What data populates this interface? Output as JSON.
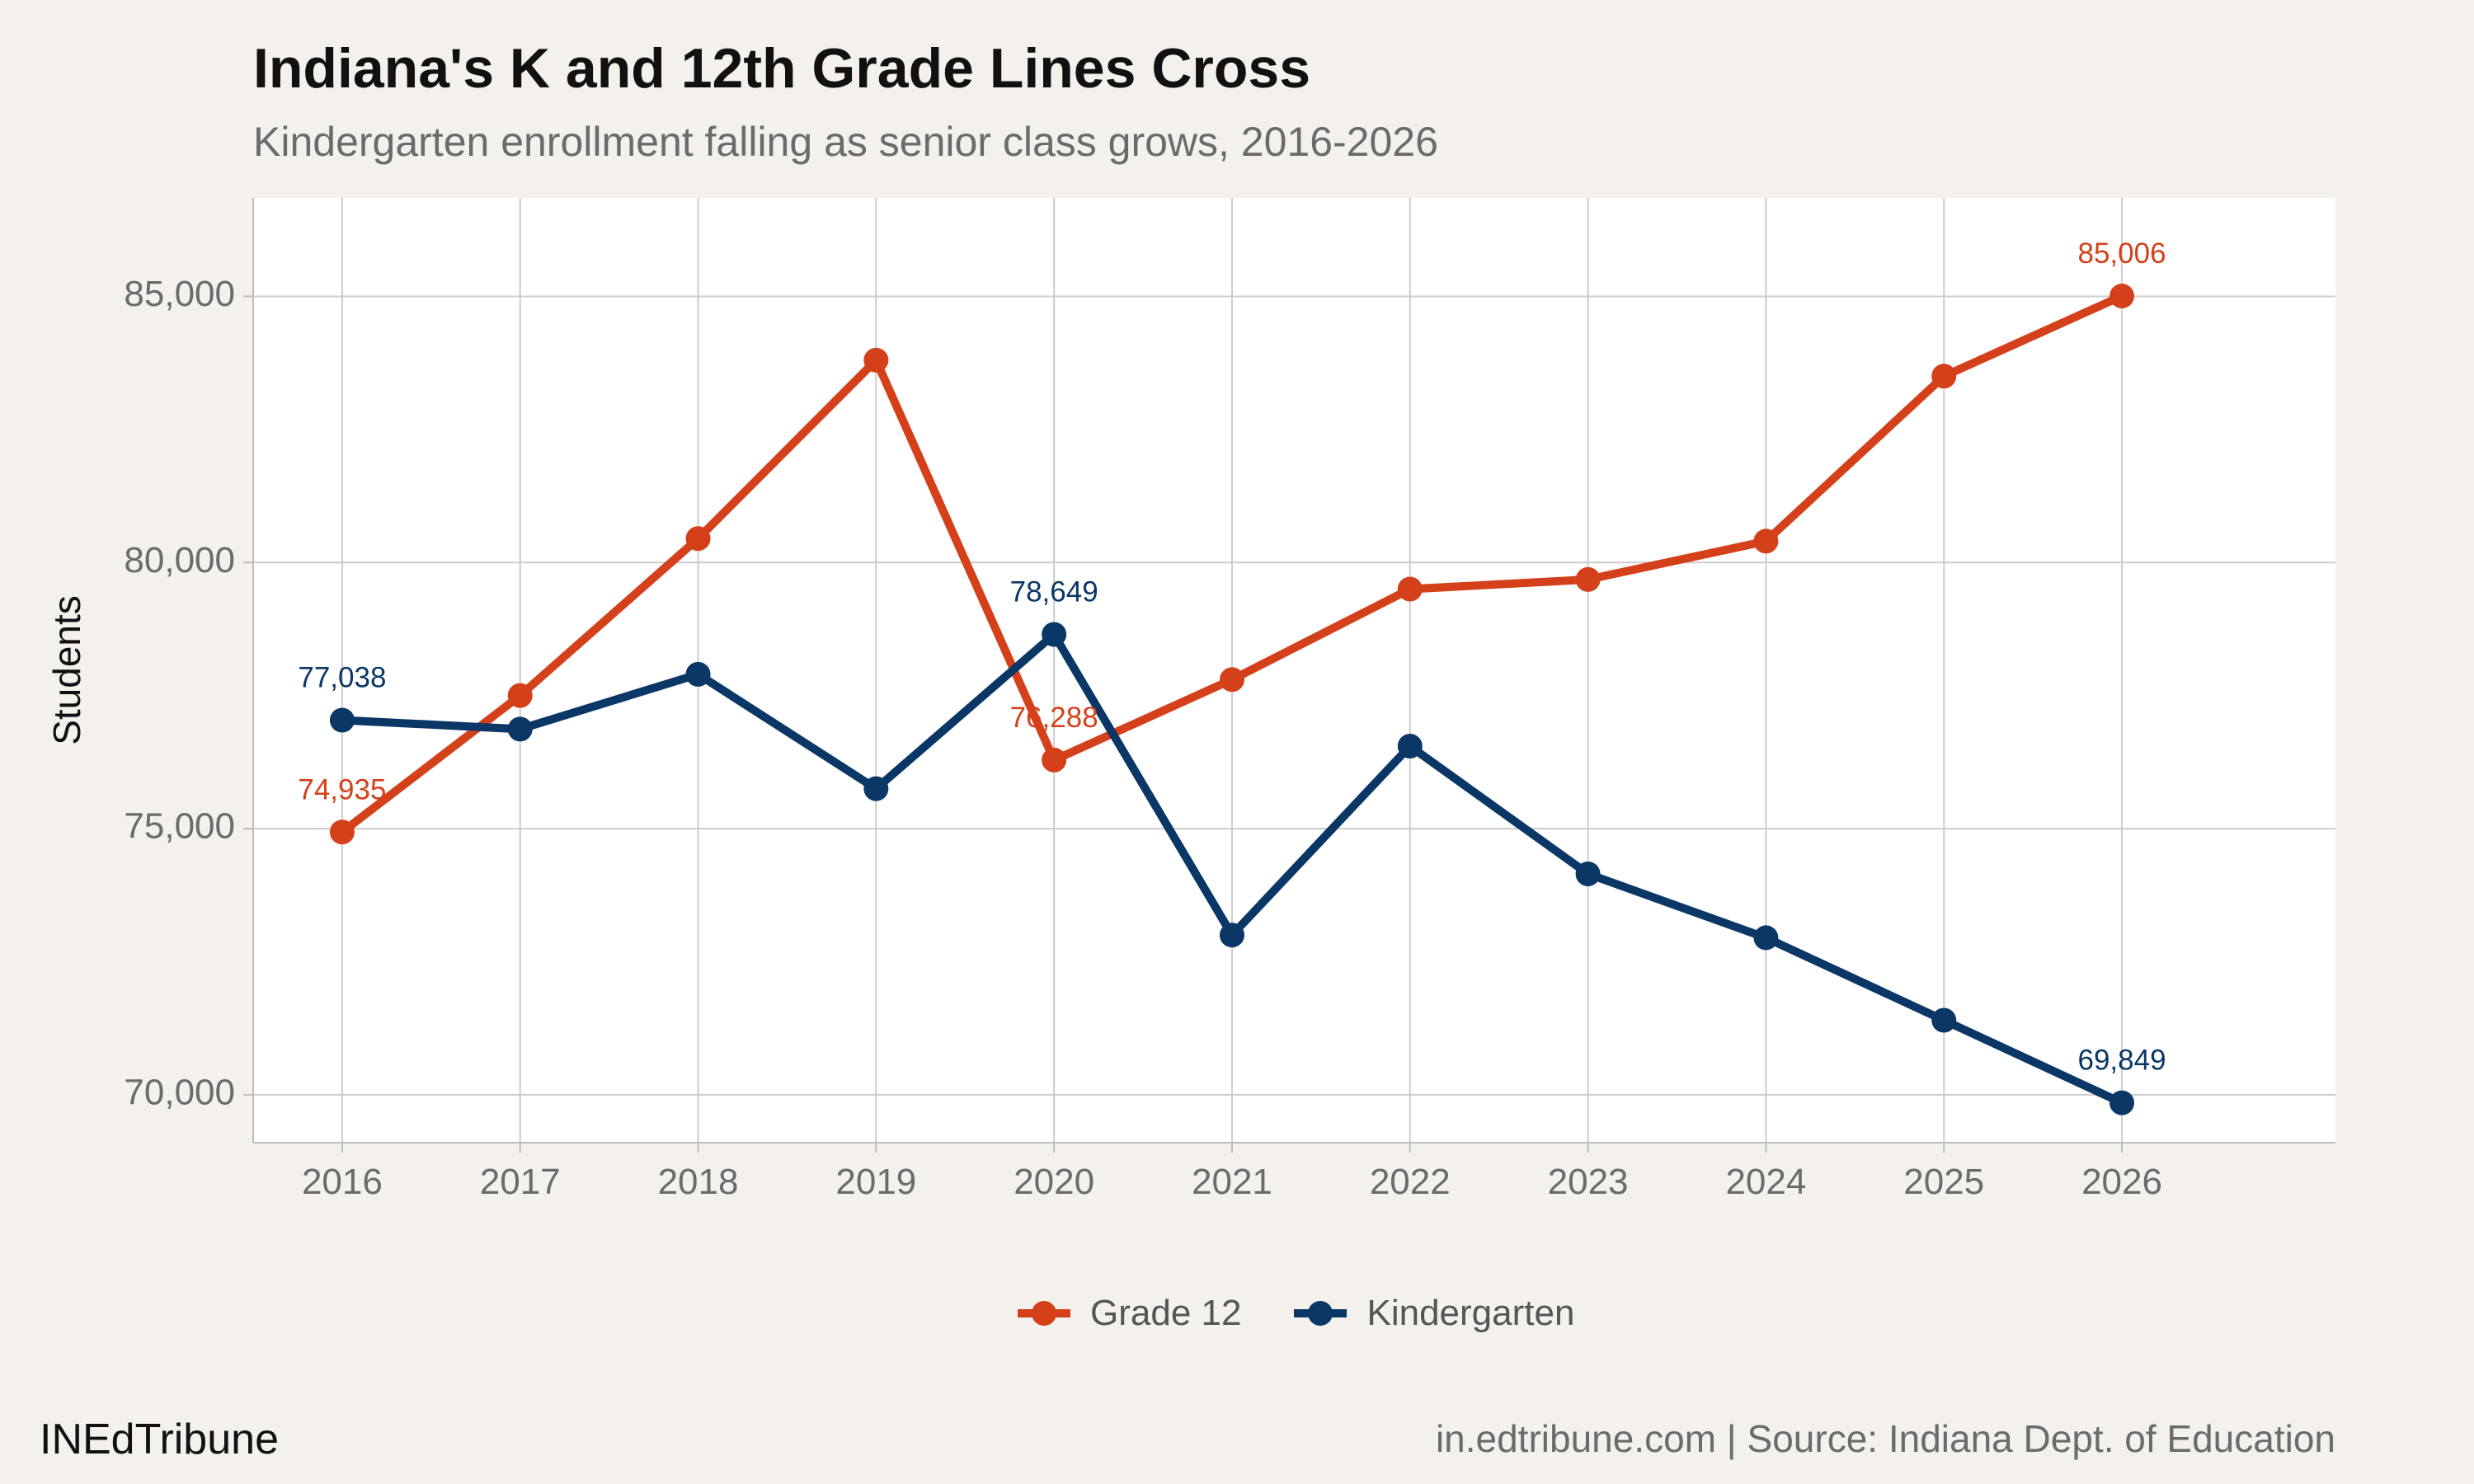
{
  "header": {
    "title": "Indiana's K and 12th Grade Lines Cross",
    "subtitle": "Kindergarten enrollment falling as senior class grows, 2016-2026"
  },
  "footer": {
    "brand": "INEdTribune",
    "source": "in.edtribune.com | Source: Indiana Dept. of Education"
  },
  "colors": {
    "grade12": "#d4401a",
    "kindergarten": "#0b3766",
    "panel": "#ffffff",
    "background": "#f4f1ec",
    "grid": "#cccccc"
  },
  "chart_data": {
    "type": "line",
    "title": "Indiana's K and 12th Grade Lines Cross",
    "subtitle": "Kindergarten enrollment falling as senior class grows, 2016-2026",
    "xlabel": "",
    "ylabel": "Students",
    "x": [
      2016,
      2017,
      2018,
      2019,
      2020,
      2021,
      2022,
      2023,
      2024,
      2025,
      2026
    ],
    "x_tick_labels": [
      "2016",
      "2017",
      "2018",
      "2019",
      "2020",
      "2021",
      "2022",
      "2023",
      "2024",
      "2025",
      "2026"
    ],
    "y_ticks": [
      70000,
      75000,
      80000,
      85000
    ],
    "y_tick_labels": [
      "70,000",
      "75,000",
      "80,000",
      "85,000"
    ],
    "xlim": [
      2015.5,
      2027.2
    ],
    "ylim": [
      69100,
      86850
    ],
    "grid": true,
    "legend_position": "bottom",
    "series": [
      {
        "name": "Grade 12",
        "color": "#d4401a",
        "values": [
          74935,
          77500,
          80450,
          83800,
          76288,
          77800,
          79500,
          79680,
          80400,
          83500,
          85006
        ],
        "labels": [
          {
            "index": 0,
            "text": "74,935"
          },
          {
            "index": 4,
            "text": "76,288"
          },
          {
            "index": 10,
            "text": "85,006"
          }
        ]
      },
      {
        "name": "Kindergarten",
        "color": "#0b3766",
        "values": [
          77038,
          76870,
          77900,
          75750,
          78649,
          73000,
          76550,
          74150,
          72950,
          71400,
          69849
        ],
        "labels": [
          {
            "index": 0,
            "text": "77,038"
          },
          {
            "index": 4,
            "text": "78,649"
          },
          {
            "index": 10,
            "text": "69,849"
          }
        ]
      }
    ]
  }
}
